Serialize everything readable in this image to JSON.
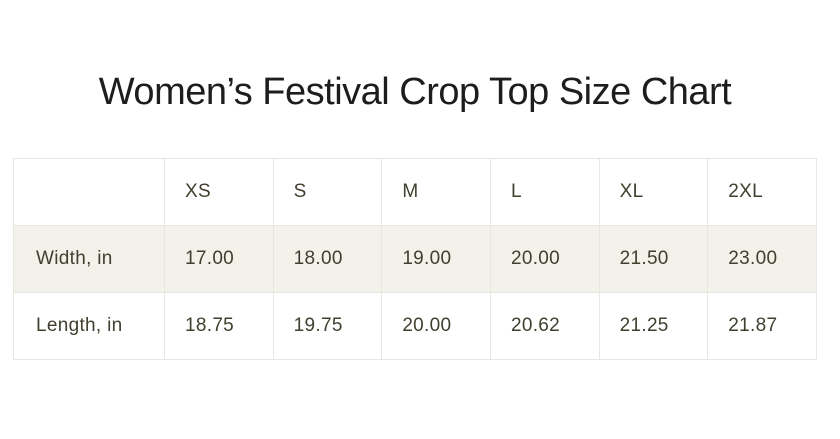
{
  "title": "Women’s Festival Crop Top Size Chart",
  "chart_data": {
    "type": "table",
    "title": "Women’s Festival Crop Top Size Chart",
    "columns": [
      "",
      "XS",
      "S",
      "M",
      "L",
      "XL",
      "2XL"
    ],
    "rows": [
      {
        "label": "Width, in",
        "values": [
          "17.00",
          "18.00",
          "19.00",
          "20.00",
          "21.50",
          "23.00"
        ]
      },
      {
        "label": "Length, in",
        "values": [
          "18.75",
          "19.75",
          "20.00",
          "20.62",
          "21.25",
          "21.87"
        ]
      }
    ],
    "units": "in",
    "layout": "row labels left, size columns left-aligned, second row striped"
  },
  "colors": {
    "background": "#ffffff",
    "title_text": "#1d1d1d",
    "table_text": "#413f2e",
    "row_stripe": "#f2f1ea",
    "border": "#e8e6e0"
  }
}
